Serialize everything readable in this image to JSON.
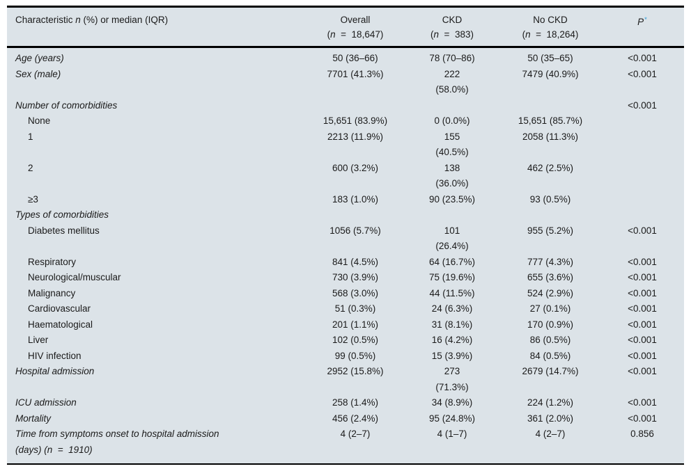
{
  "colors": {
    "table_background": "#dce3e8",
    "rule_color": "#000000",
    "text_color": "#1a1a1a",
    "footnote_star_color": "#2b9cd8"
  },
  "table": {
    "header": {
      "characteristic": {
        "pre": "Characteristic ",
        "n_symbol": "n",
        "post": " (%) or median (IQR)"
      },
      "paren_open": "(",
      "n_symbol": "n",
      "equals": "  =  ",
      "paren_close": ")",
      "columns": [
        {
          "title": "Overall",
          "n": "18,647"
        },
        {
          "title": "CKD",
          "n": "383"
        },
        {
          "title": "No CKD",
          "n": "18,264"
        }
      ],
      "p": {
        "label": "P",
        "star": "*"
      }
    },
    "rows": [
      {
        "label": "Age (years)",
        "style": "main",
        "overall": "50 (36–66)",
        "ckd": "78 (70–86)",
        "no_ckd": "50 (35–65)",
        "p": "<0.001"
      },
      {
        "label": "Sex (male)",
        "style": "main",
        "overall": "7701 (41.3%)",
        "ckd": "222\n(58.0%)",
        "no_ckd": "7479 (40.9%)",
        "p": "<0.001"
      },
      {
        "label": "Number of comorbidities",
        "style": "main",
        "overall": "",
        "ckd": "",
        "no_ckd": "",
        "p": "<0.001"
      },
      {
        "label": "None",
        "style": "sub",
        "overall": "15,651 (83.9%)",
        "ckd": "0 (0.0%)",
        "no_ckd": "15,651 (85.7%)",
        "p": ""
      },
      {
        "label": "1",
        "style": "sub",
        "overall": "2213 (11.9%)",
        "ckd": "155\n(40.5%)",
        "no_ckd": "2058 (11.3%)",
        "p": ""
      },
      {
        "label": "2",
        "style": "sub",
        "overall": "600 (3.2%)",
        "ckd": "138\n(36.0%)",
        "no_ckd": "462 (2.5%)",
        "p": ""
      },
      {
        "label": "≥3",
        "style": "sub",
        "overall": "183 (1.0%)",
        "ckd": "90 (23.5%)",
        "no_ckd": "93 (0.5%)",
        "p": ""
      },
      {
        "label": "Types of comorbidities",
        "style": "main",
        "overall": "",
        "ckd": "",
        "no_ckd": "",
        "p": ""
      },
      {
        "label": "Diabetes mellitus",
        "style": "sub",
        "overall": "1056 (5.7%)",
        "ckd": "101\n(26.4%)",
        "no_ckd": "955 (5.2%)",
        "p": "<0.001"
      },
      {
        "label": "Respiratory",
        "style": "sub",
        "overall": "841 (4.5%)",
        "ckd": "64 (16.7%)",
        "no_ckd": "777 (4.3%)",
        "p": "<0.001"
      },
      {
        "label": "Neurological/muscular",
        "style": "sub",
        "overall": "730 (3.9%)",
        "ckd": "75 (19.6%)",
        "no_ckd": "655 (3.6%)",
        "p": "<0.001"
      },
      {
        "label": "Malignancy",
        "style": "sub",
        "overall": "568 (3.0%)",
        "ckd": "44 (11.5%)",
        "no_ckd": "524 (2.9%)",
        "p": "<0.001"
      },
      {
        "label": "Cardiovascular",
        "style": "sub",
        "overall": "51 (0.3%)",
        "ckd": "24 (6.3%)",
        "no_ckd": "27 (0.1%)",
        "p": "<0.001"
      },
      {
        "label": "Haematological",
        "style": "sub",
        "overall": "201 (1.1%)",
        "ckd": "31 (8.1%)",
        "no_ckd": "170 (0.9%)",
        "p": "<0.001"
      },
      {
        "label": "Liver",
        "style": "sub",
        "overall": "102 (0.5%)",
        "ckd": "16 (4.2%)",
        "no_ckd": "86 (0.5%)",
        "p": "<0.001"
      },
      {
        "label": "HIV infection",
        "style": "sub",
        "overall": "99 (0.5%)",
        "ckd": "15 (3.9%)",
        "no_ckd": "84 (0.5%)",
        "p": "<0.001"
      },
      {
        "label": "Hospital admission",
        "style": "main",
        "overall": "2952 (15.8%)",
        "ckd": "273\n(71.3%)",
        "no_ckd": "2679 (14.7%)",
        "p": "<0.001"
      },
      {
        "label": "ICU admission",
        "style": "main",
        "overall": "258 (1.4%)",
        "ckd": "34 (8.9%)",
        "no_ckd": "224 (1.2%)",
        "p": "<0.001"
      },
      {
        "label": "Mortality",
        "style": "main",
        "overall": "456 (2.4%)",
        "ckd": "95 (24.8%)",
        "no_ckd": "361 (2.0%)",
        "p": "<0.001"
      },
      {
        "label": "Time from symptoms onset to hospital admission\n(days) (n  =  1910)",
        "style": "main",
        "overall": "4 (2–7)",
        "ckd": "4 (1–7)",
        "no_ckd": "4 (2–7)",
        "p": "0.856"
      }
    ]
  }
}
